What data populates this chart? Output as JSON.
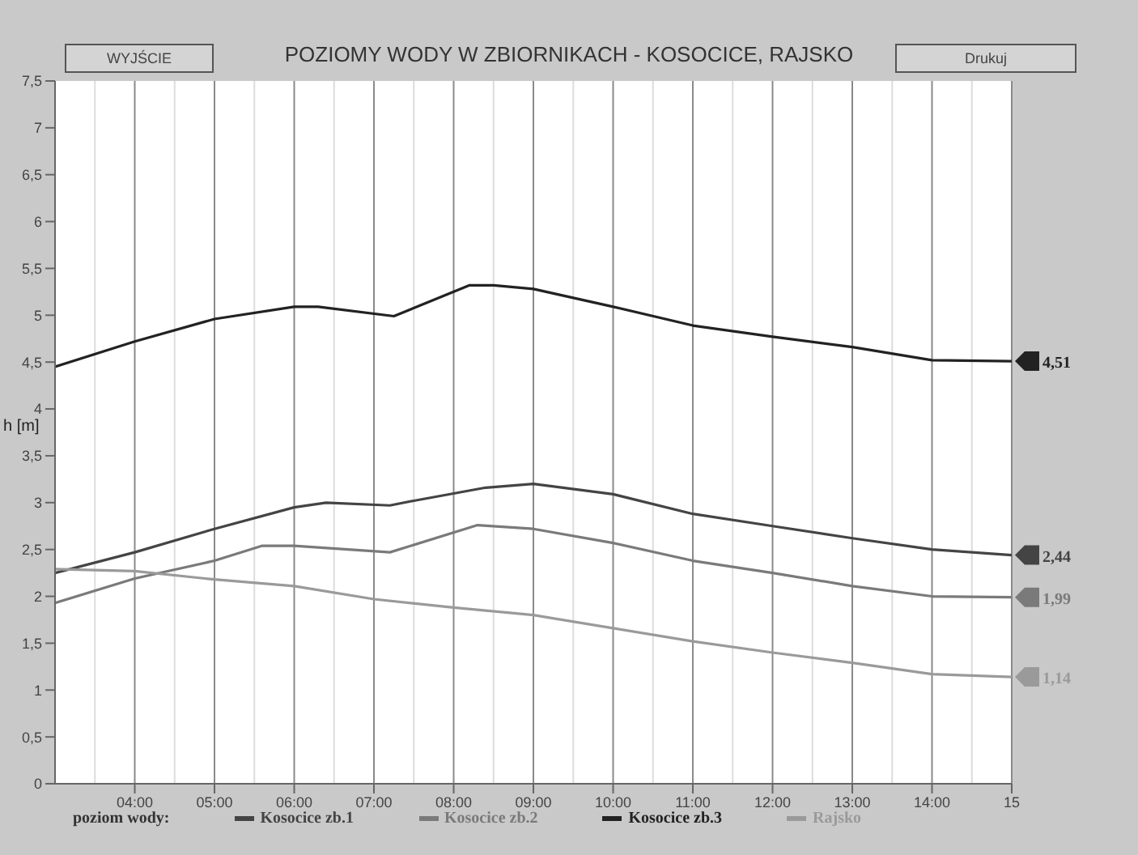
{
  "chart_data": {
    "type": "line",
    "title": "POZIOMY WODY W ZBIORNIKACH - KOSOCICE, RAJSKO",
    "ylabel": "h [m]",
    "legend_title": "poziom wody:",
    "annotations": [
      "WYJŚCIE",
      "Drukuj"
    ],
    "xlim": [
      3,
      15
    ],
    "xticks": [
      {
        "value": 4,
        "label": "04:00"
      },
      {
        "value": 5,
        "label": "05:00"
      },
      {
        "value": 6,
        "label": "06:00"
      },
      {
        "value": 7,
        "label": "07:00"
      },
      {
        "value": 8,
        "label": "08:00"
      },
      {
        "value": 9,
        "label": "09:00"
      },
      {
        "value": 10,
        "label": "10:00"
      },
      {
        "value": 11,
        "label": "11:00"
      },
      {
        "value": 12,
        "label": "12:00"
      },
      {
        "value": 13,
        "label": "13:00"
      },
      {
        "value": 14,
        "label": "14:00"
      },
      15
    ],
    "ylim": [
      0,
      7.5
    ],
    "yticks": [
      0,
      {
        "value": 0.5,
        "label": "0,5"
      },
      1,
      {
        "value": 1.5,
        "label": "1,5"
      },
      2,
      {
        "value": 2.5,
        "label": "2,5"
      },
      3,
      {
        "value": 3.5,
        "label": "3,5"
      },
      4,
      {
        "value": 4.5,
        "label": "4,5"
      },
      5,
      {
        "value": 5.5,
        "label": "5,5"
      },
      6,
      {
        "value": 6.5,
        "label": "6,5"
      },
      7,
      {
        "value": 7.5,
        "label": "7,5"
      }
    ],
    "grid": true,
    "legend": "bottom",
    "marker": "none",
    "line_style": "solid",
    "series": [
      {
        "name": "Kosocice zb.1",
        "color": "#444444",
        "x": [
          3,
          4,
          5,
          6,
          6.4,
          7.2,
          7.5,
          8.4,
          9,
          10,
          11,
          12,
          13,
          14,
          15
        ],
        "values": [
          2.25,
          2.47,
          2.72,
          2.95,
          3.0,
          2.97,
          3.02,
          3.16,
          3.2,
          3.09,
          2.88,
          2.75,
          2.62,
          2.5,
          2.44
        ],
        "value_labels": [
          null,
          null,
          null,
          null,
          null,
          null,
          null,
          null,
          null,
          null,
          null,
          null,
          null,
          null,
          "2,44"
        ]
      },
      {
        "name": "Kosocice zb.2",
        "color": "#7a7a7a",
        "x": [
          3,
          4,
          5,
          5.6,
          6,
          7.2,
          8.3,
          9,
          10,
          11,
          12,
          13,
          14,
          15
        ],
        "values": [
          1.93,
          2.19,
          2.38,
          2.54,
          2.54,
          2.47,
          2.76,
          2.72,
          2.57,
          2.38,
          2.25,
          2.11,
          2.0,
          1.99
        ],
        "value_labels": [
          null,
          null,
          null,
          null,
          null,
          null,
          null,
          null,
          null,
          null,
          null,
          null,
          null,
          "1,99"
        ]
      },
      {
        "name": "Kosocice zb.3",
        "color": "#222222",
        "x": [
          3,
          4,
          5,
          6,
          6.3,
          7.25,
          8.2,
          8.5,
          9,
          10,
          11,
          12,
          13,
          14,
          15
        ],
        "values": [
          4.45,
          4.72,
          4.96,
          5.09,
          5.09,
          4.99,
          5.32,
          5.32,
          5.28,
          5.09,
          4.89,
          4.77,
          4.66,
          4.52,
          4.51
        ],
        "value_labels": [
          null,
          null,
          null,
          null,
          null,
          null,
          null,
          null,
          null,
          null,
          null,
          null,
          null,
          null,
          "4,51"
        ]
      },
      {
        "name": "Rajsko",
        "color": "#9a9a9a",
        "x": [
          3,
          4,
          5,
          6,
          7,
          8,
          9,
          10,
          11,
          12,
          13,
          14,
          15
        ],
        "values": [
          2.29,
          2.27,
          2.18,
          2.11,
          1.97,
          1.88,
          1.8,
          1.66,
          1.52,
          1.4,
          1.29,
          1.17,
          1.14
        ],
        "value_labels": [
          null,
          null,
          null,
          null,
          null,
          null,
          null,
          null,
          null,
          null,
          null,
          null,
          "1,14"
        ]
      }
    ]
  }
}
